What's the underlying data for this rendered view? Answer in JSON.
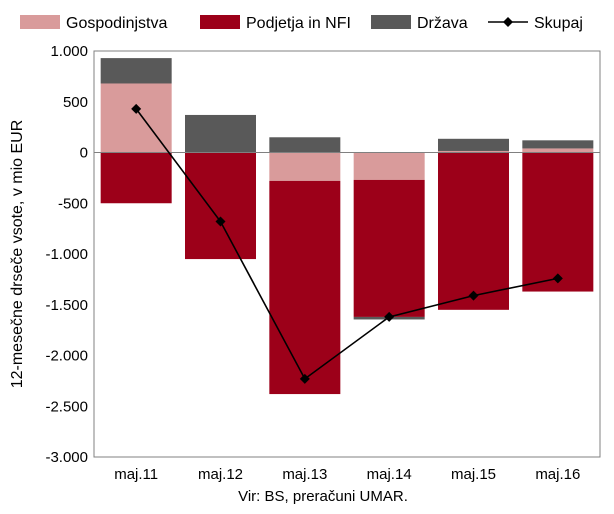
{
  "chart_data": {
    "type": "bar",
    "stacked": true,
    "categories": [
      "maj.11",
      "maj.12",
      "maj.13",
      "maj.14",
      "maj.15",
      "maj.16"
    ],
    "series": [
      {
        "name": "Gospodinjstva",
        "type": "bar",
        "color": "#d99b9b",
        "values": [
          680,
          0,
          -280,
          -270,
          15,
          40
        ]
      },
      {
        "name": "Podjetja in NFI",
        "type": "bar",
        "color": "#9c0019",
        "values": [
          -500,
          -1050,
          -2100,
          -1350,
          -1550,
          -1370
        ]
      },
      {
        "name": "Država",
        "type": "bar",
        "color": "#595959",
        "values": [
          250,
          370,
          150,
          -25,
          120,
          80
        ]
      },
      {
        "name": "Skupaj",
        "type": "line",
        "color": "#000000",
        "marker": "diamond",
        "values": [
          430,
          -680,
          -2230,
          -1620,
          -1410,
          -1240
        ]
      }
    ],
    "ylabel": "12-mesečne drseče vsote, v mio EUR",
    "ylim": [
      -3000,
      1000
    ],
    "yticks": [
      1000,
      500,
      0,
      -500,
      -1000,
      -1500,
      -2000,
      -2500,
      -3000
    ],
    "ytick_labels": [
      "1.000",
      "500",
      "0",
      "-500",
      "-1.000",
      "-1.500",
      "-2.000",
      "-2.500",
      "-3.000"
    ],
    "grid": false,
    "legend_position": "top"
  },
  "source_note": "Vir: BS, preračuni UMAR."
}
